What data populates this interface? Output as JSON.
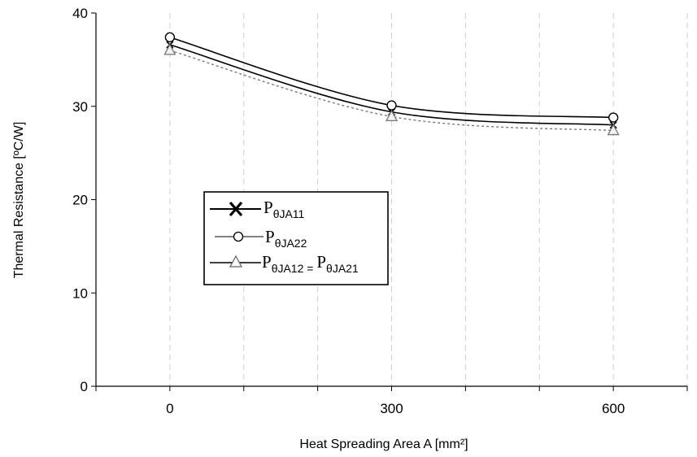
{
  "chart_data": {
    "type": "line",
    "xlabel": "Heat Spreading Area A [mm²]",
    "ylabel": "Thermal Resistance [ºC/W]",
    "x_ticks": [
      "0",
      "300",
      "600"
    ],
    "y_ticks": [
      "0",
      "10",
      "20",
      "30",
      "40"
    ],
    "xlim": [
      -100,
      700
    ],
    "ylim": [
      0,
      40
    ],
    "grid": "vertical dashed",
    "legend_position": "center-left",
    "x": [
      0,
      300,
      600
    ],
    "series": [
      {
        "key": "s11",
        "legend_main": "P",
        "legend_sub": "θJA11",
        "values": [
          36.6,
          29.4,
          28.0
        ],
        "marker": "x",
        "color": "#000000"
      },
      {
        "key": "s22",
        "legend_main": "P",
        "legend_sub": "θJA22",
        "values": [
          37.4,
          30.1,
          28.8
        ],
        "marker": "circle",
        "color": "#000000"
      },
      {
        "key": "s12",
        "legend_main": "P",
        "legend_sub": "θJA12 = ",
        "legend_main2": "P",
        "legend_sub2": "θJA21",
        "values": [
          36.0,
          28.9,
          27.4
        ],
        "marker": "triangle",
        "color": "#808080"
      }
    ]
  }
}
